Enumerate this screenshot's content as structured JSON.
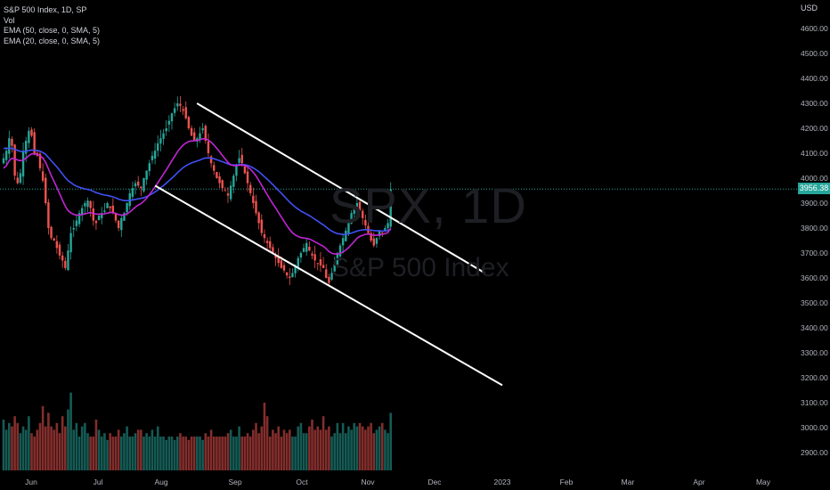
{
  "legend": {
    "title": "S&P 500 Index, 1D, SP",
    "vol": "Vol",
    "ema50": "EMA (50, close, 0, SMA, 5)",
    "ema20": "EMA (20, close, 0, SMA, 5)"
  },
  "watermark": {
    "symbol": "SPX, 1D",
    "name": "S&P 500 Index"
  },
  "price_axis": {
    "currency": "USD",
    "last_price": "3956.38"
  },
  "colors": {
    "up": "#26a69a",
    "down": "#ef5350",
    "ema50": "#3f51f5",
    "ema20": "#c026d3",
    "channel": "#ffffff",
    "last_price_line": "#26a69a"
  },
  "chart_data": {
    "type": "candlestick",
    "ylabel": "USD",
    "ylim": [
      2850,
      4700
    ],
    "y_ticks": [
      2900,
      3000,
      3100,
      3200,
      3300,
      3400,
      3500,
      3600,
      3700,
      3800,
      3900,
      4000,
      4100,
      4200,
      4300,
      4400,
      4500,
      4600
    ],
    "x_ticks": [
      "Jun",
      "Jul",
      "Aug",
      "Sep",
      "Oct",
      "Nov",
      "Dec",
      "2023",
      "Feb",
      "Mar",
      "Apr",
      "May"
    ],
    "close_series": [
      4080,
      4110,
      4160,
      4130,
      4010,
      3980,
      4020,
      4110,
      4150,
      4190,
      4170,
      4100,
      4090,
      4040,
      3990,
      3900,
      3800,
      3760,
      3750,
      3720,
      3690,
      3670,
      3640,
      3710,
      3780,
      3800,
      3830,
      3860,
      3880,
      3900,
      3910,
      3880,
      3830,
      3820,
      3850,
      3860,
      3870,
      3900,
      3880,
      3860,
      3830,
      3800,
      3840,
      3860,
      3900,
      3940,
      3960,
      3980,
      3970,
      3960,
      4000,
      4030,
      4060,
      4090,
      4110,
      4140,
      4160,
      4180,
      4200,
      4230,
      4260,
      4280,
      4300,
      4290,
      4270,
      4240,
      4200,
      4170,
      4150,
      4160,
      4180,
      4200,
      4150,
      4100,
      4060,
      4030,
      4000,
      3980,
      3960,
      3950,
      3930,
      3970,
      4010,
      4050,
      4080,
      4060,
      4020,
      3980,
      3940,
      3900,
      3860,
      3820,
      3780,
      3760,
      3740,
      3720,
      3700,
      3680,
      3660,
      3640,
      3630,
      3610,
      3600,
      3620,
      3650,
      3680,
      3700,
      3720,
      3740,
      3710,
      3690,
      3670,
      3660,
      3650,
      3640,
      3600,
      3580,
      3620,
      3660,
      3700,
      3730,
      3760,
      3790,
      3830,
      3860,
      3880,
      3900,
      3870,
      3840,
      3810,
      3780,
      3750,
      3730,
      3760,
      3790,
      3780,
      3800,
      3820,
      3956
    ],
    "ema20_series": [
      4040,
      4050,
      4070,
      4080,
      4078,
      4073,
      4070,
      4073,
      4080,
      4090,
      4097,
      4097,
      4096,
      4091,
      4081,
      4063,
      4038,
      4011,
      3987,
      3962,
      3937,
      3912,
      3888,
      3870,
      3861,
      3855,
      3852,
      3852,
      3854,
      3857,
      3860,
      3862,
      3859,
      3856,
      3856,
      3856,
      3857,
      3860,
      3862,
      3862,
      3859,
      3854,
      3852,
      3853,
      3857,
      3865,
      3874,
      3884,
      3892,
      3898,
      3908,
      3920,
      3934,
      3949,
      3965,
      3982,
      3999,
      4016,
      4033,
      4051,
      4070,
      4088,
      4106,
      4120,
      4133,
      4141,
      4147,
      4149,
      4150,
      4151,
      4154,
      4158,
      4158,
      4153,
      4144,
      4133,
      4120,
      4106,
      4091,
      4077,
      4063,
      4054,
      4050,
      4050,
      4052,
      4053,
      4051,
      4045,
      4036,
      4024,
      4009,
      3991,
      3972,
      3953,
      3934,
      3915,
      3897,
      3880,
      3862,
      3845,
      3827,
      3810,
      3794,
      3781,
      3772,
      3766,
      3762,
      3760,
      3759,
      3756,
      3751,
      3745,
      3739,
      3733,
      3727,
      3717,
      3706,
      3699,
      3696,
      3696,
      3699,
      3704,
      3712,
      3722,
      3734,
      3746,
      3759,
      3767,
      3771,
      3775,
      3776,
      3774,
      3771,
      3771,
      3773,
      3775,
      3778,
      3782,
      3800
    ],
    "ema50_series": [
      4120,
      4119,
      4120,
      4120,
      4116,
      4111,
      4107,
      4107,
      4108,
      4111,
      4113,
      4112,
      4111,
      4108,
      4103,
      4095,
      4083,
      4070,
      4058,
      4045,
      4031,
      4017,
      4002,
      3990,
      3982,
      3974,
      3968,
      3964,
      3960,
      3957,
      3955,
      3952,
      3947,
      3942,
      3939,
      3935,
      3932,
      3931,
      3928,
      3925,
      3921,
      3916,
      3913,
      3910,
      3910,
      3911,
      3913,
      3915,
      3917,
      3919,
      3922,
      3926,
      3932,
      3938,
      3945,
      3953,
      3962,
      3970,
      3980,
      3990,
      4000,
      4011,
      4022,
      4032,
      4042,
      4050,
      4056,
      4061,
      4065,
      4069,
      4073,
      4078,
      4081,
      4081,
      4080,
      4078,
      4074,
      4070,
      4066,
      4062,
      4057,
      4054,
      4053,
      4053,
      4054,
      4055,
      4054,
      4051,
      4047,
      4041,
      4034,
      4026,
      4016,
      4006,
      3996,
      3985,
      3974,
      3963,
      3951,
      3940,
      3928,
      3916,
      3904,
      3894,
      3884,
      3876,
      3868,
      3862,
      3856,
      3850,
      3843,
      3835,
      3828,
      3820,
      3813,
      3804,
      3795,
      3788,
      3782,
      3778,
      3776,
      3774,
      3775,
      3777,
      3780,
      3784,
      3788,
      3791,
      3793,
      3794,
      3793,
      3792,
      3790,
      3789,
      3789,
      3788,
      3789,
      3790,
      3797
    ],
    "volume_series": [
      1.5,
      1.2,
      1.4,
      1.3,
      1.6,
      1.4,
      1.1,
      1.3,
      1.2,
      1.6,
      1.1,
      1.0,
      1.2,
      1.4,
      1.9,
      1.3,
      1.7,
      1.3,
      1.2,
      1.4,
      1.1,
      1.6,
      1.3,
      1.8,
      2.3,
      1.2,
      1.4,
      1.0,
      1.3,
      1.4,
      1.1,
      1.0,
      1.0,
      1.5,
      1.2,
      1.0,
      1.1,
      0.9,
      1.1,
      1.0,
      1.0,
      1.2,
      1.0,
      1.1,
      1.3,
      1.0,
      1.0,
      1.1,
      1.2,
      1.2,
      1.0,
      1.1,
      1.0,
      1.2,
      1.0,
      1.3,
      1.0,
      1.0,
      0.9,
      1.0,
      1.0,
      0.9,
      1.0,
      1.1,
      1.0,
      1.0,
      0.9,
      1.0,
      1.0,
      1.0,
      1.0,
      0.9,
      1.1,
      1.0,
      1.2,
      1.0,
      1.0,
      1.0,
      1.0,
      1.0,
      1.1,
      1.2,
      1.0,
      1.0,
      1.3,
      1.0,
      1.0,
      1.1,
      1.0,
      1.2,
      1.4,
      1.1,
      1.3,
      2.0,
      1.6,
      1.0,
      1.2,
      1.1,
      1.3,
      1.0,
      1.2,
      1.1,
      1.2,
      1.0,
      1.0,
      1.3,
      1.4,
      1.1,
      1.1,
      1.3,
      1.5,
      1.2,
      1.3,
      1.2,
      1.6,
      1.2,
      1.3,
      1.0,
      1.1,
      1.4,
      1.1,
      1.4,
      1.1,
      1.3,
      1.2,
      1.4,
      1.3,
      1.4,
      1.3,
      1.2,
      1.3,
      1.4,
      1.1,
      1.2,
      1.3,
      1.4,
      1.2,
      1.1,
      1.7
    ],
    "channel_upper": {
      "start": [
        "2022-08-16",
        4300
      ],
      "end": [
        "2022-12-24",
        3620
      ]
    },
    "channel_lower": {
      "start": [
        "2022-07-29",
        3970
      ],
      "end": [
        "2023-01-01",
        3170
      ]
    },
    "last_close": 3956.38
  }
}
